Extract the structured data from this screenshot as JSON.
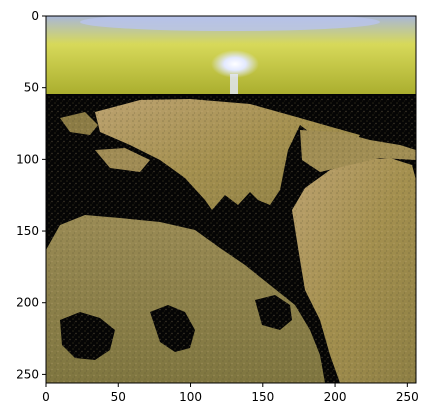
{
  "figure": {
    "image_extent": [
      0,
      256,
      256,
      0
    ],
    "x_ticks": [
      "0",
      "50",
      "100",
      "150",
      "200",
      "250"
    ],
    "y_ticks": [
      "0",
      "50",
      "100",
      "150",
      "200",
      "250"
    ],
    "x_tick_values": [
      0,
      50,
      100,
      150,
      200,
      250
    ],
    "y_tick_values": [
      0,
      50,
      100,
      150,
      200,
      250
    ]
  },
  "image": {
    "subject": "sunset over a rocky desert terrain with dark shadowed cracks",
    "palette": {
      "sky_top": "#a9b7d8",
      "sky_glow": "#d7d95a",
      "sky_horizon": "#a9ad2d",
      "sun": "#e3e9ff",
      "sand_light": "#bca270",
      "sand_mid": "#9f8950",
      "sand_dark": "#6e6638",
      "shadow": "#050505"
    }
  }
}
